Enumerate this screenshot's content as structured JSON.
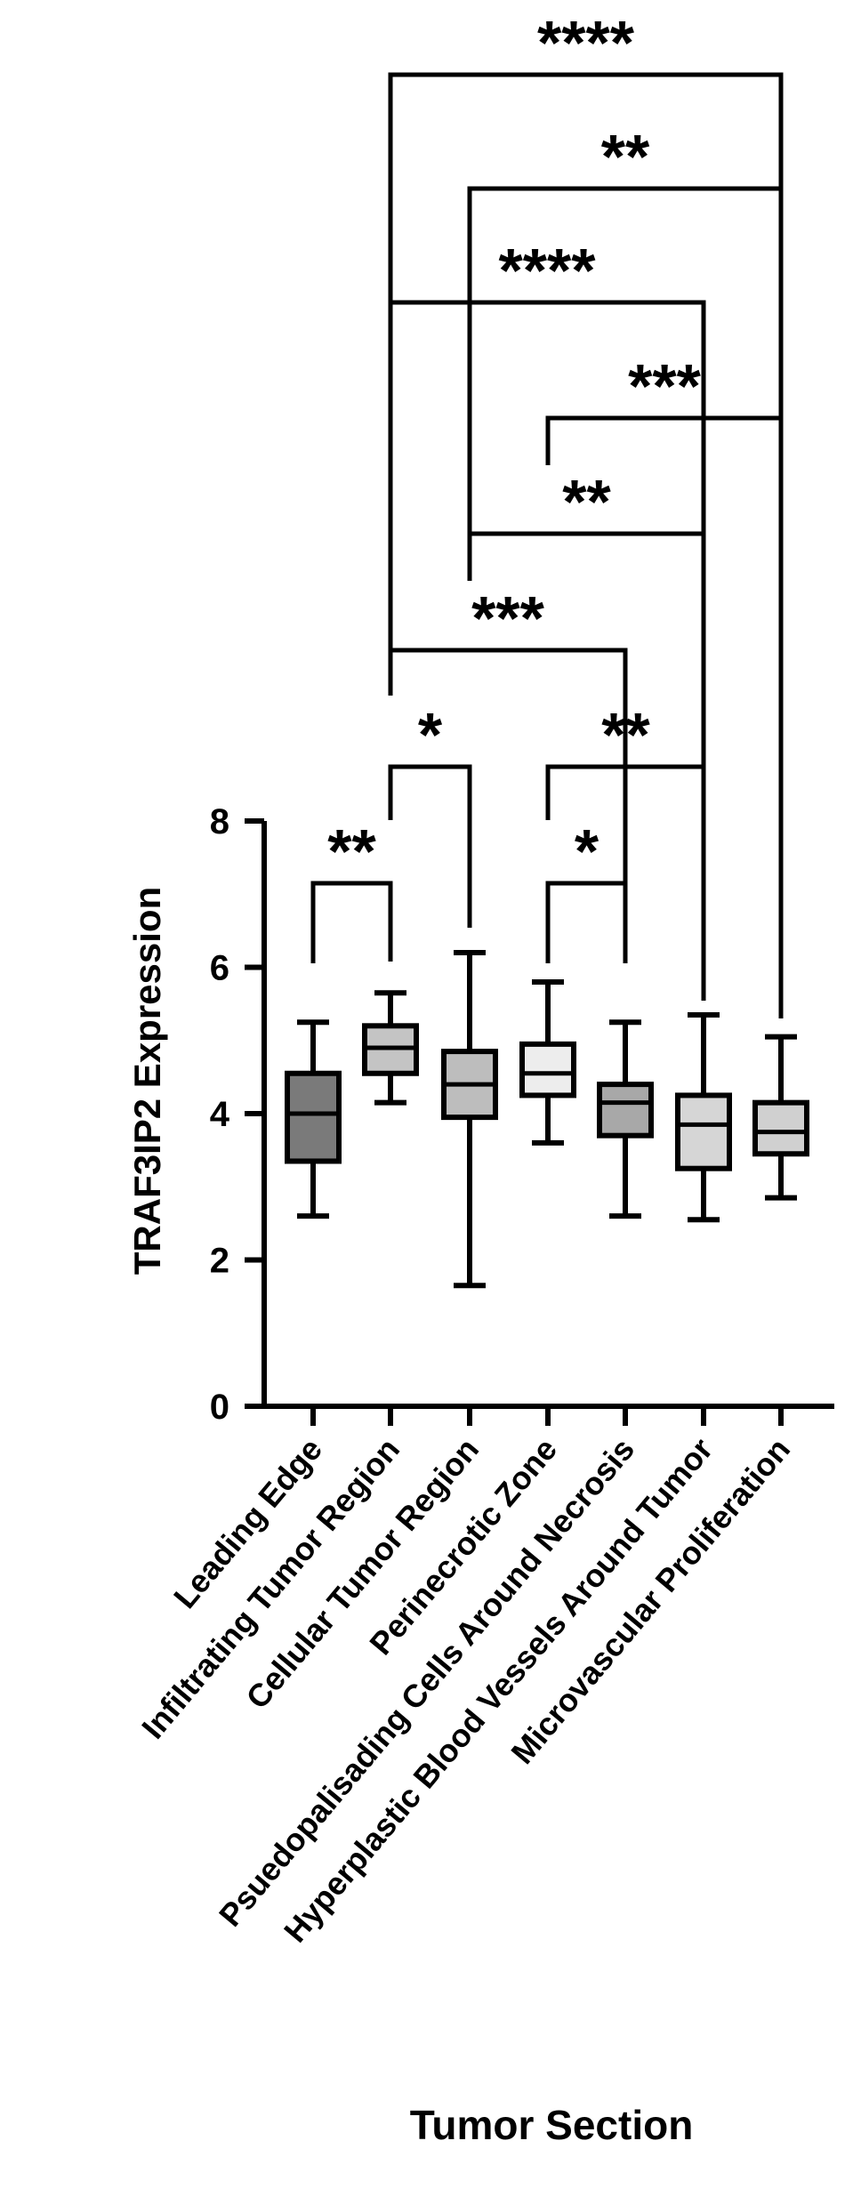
{
  "chart_data": {
    "type": "box",
    "ylabel": "TRAF3IP2 Expression",
    "xlabel": "Tumor Section",
    "ylim": [
      0,
      8
    ],
    "yticks": [
      0,
      2,
      4,
      6,
      8
    ],
    "categories": [
      "Leading Edge",
      "Infiltrating Tumor Region",
      "Cellular Tumor Region",
      "Perinecrotic Zone",
      "Psuedopalisading Cells Around Necrosis",
      "Hyperplastic Blood Vessels Around Tumor",
      "Microvascular Proliferation"
    ],
    "boxes": [
      {
        "min": 2.6,
        "q1": 3.35,
        "median": 4.0,
        "q3": 4.55,
        "max": 5.25,
        "fill": "#7a7a7a"
      },
      {
        "min": 4.15,
        "q1": 4.55,
        "median": 4.9,
        "q3": 5.2,
        "max": 5.65,
        "fill": "#c4c4c4"
      },
      {
        "min": 1.65,
        "q1": 3.95,
        "median": 4.4,
        "q3": 4.85,
        "max": 6.2,
        "fill": "#bdbdbd"
      },
      {
        "min": 3.6,
        "q1": 4.25,
        "median": 4.55,
        "q3": 4.95,
        "max": 5.8,
        "fill": "#ededed"
      },
      {
        "min": 2.6,
        "q1": 3.7,
        "median": 4.15,
        "q3": 4.4,
        "max": 5.25,
        "fill": "#a8a8a8"
      },
      {
        "min": 2.55,
        "q1": 3.25,
        "median": 3.85,
        "q3": 4.25,
        "max": 5.35,
        "fill": "#d6d6d6"
      },
      {
        "min": 2.85,
        "q1": 3.45,
        "median": 3.75,
        "q3": 4.15,
        "max": 5.05,
        "fill": "#d0d0d0"
      }
    ],
    "significance": [
      {
        "from": 0,
        "to": 1,
        "label": "**"
      },
      {
        "from": 1,
        "to": 2,
        "label": "*"
      },
      {
        "from": 3,
        "to": 4,
        "label": "*"
      },
      {
        "from": 3,
        "to": 5,
        "label": "**"
      },
      {
        "from": 1,
        "to": 4,
        "label": "***"
      },
      {
        "from": 2,
        "to": 5,
        "label": "**"
      },
      {
        "from": 3,
        "to": 6,
        "label": "***"
      },
      {
        "from": 1,
        "to": 5,
        "label": "****"
      },
      {
        "from": 2,
        "to": 6,
        "label": "**"
      },
      {
        "from": 1,
        "to": 6,
        "label": "****"
      }
    ]
  }
}
